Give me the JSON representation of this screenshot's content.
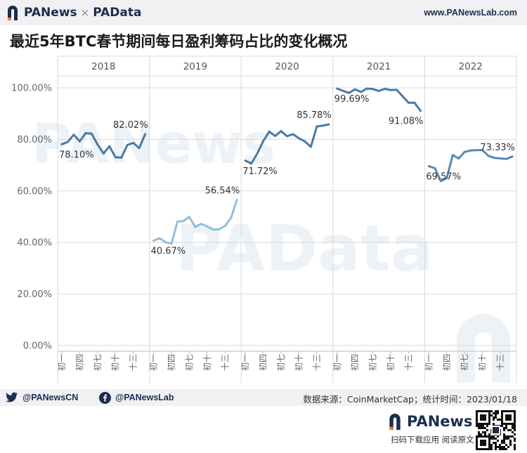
{
  "header": {
    "brand_left": "PANews",
    "separator": "×",
    "brand_right": "PAData",
    "url": "www.PANewsLab.com"
  },
  "colors": {
    "brand_blue": "#1c2d4f",
    "brand_orange": "#e8852b",
    "line_2018": "#4a7aa3",
    "line_2019": "#93bedd",
    "line_2020": "#4a7aa3",
    "line_2021": "#4a7aa3",
    "line_2022": "#5689b3",
    "grid": "#d9d9d9",
    "axis_text": "#666666"
  },
  "watermarks": [
    "PANews",
    "PAData"
  ],
  "chart_data": {
    "type": "line",
    "title": "最近5年BTC春节期间每日盈利筹码占比的变化概况",
    "ylim": [
      0,
      100
    ],
    "y_ticks": [
      "0.00%",
      "20.00%",
      "40.00%",
      "60.00%",
      "80.00%",
      "100.00%"
    ],
    "x_tick_labels": [
      "初一",
      "初四",
      "初七",
      "初十",
      "十三"
    ],
    "grid": "horizontal",
    "panels": [
      {
        "year": "2018",
        "values": [
          78.1,
          79.0,
          81.8,
          79.2,
          82.4,
          82.2,
          78.0,
          74.5,
          77.3,
          73.1,
          72.9,
          77.8,
          78.6,
          76.6,
          82.02
        ],
        "labels": [
          {
            "index": 0,
            "text": "78.10%",
            "pos": "below"
          },
          {
            "index": 14,
            "text": "82.02%",
            "pos": "above"
          }
        ]
      },
      {
        "year": "2019",
        "values": [
          40.67,
          41.6,
          40.1,
          39.5,
          48.1,
          48.3,
          49.9,
          46.0,
          47.2,
          46.2,
          45.0,
          45.1,
          46.4,
          49.5,
          56.54
        ],
        "labels": [
          {
            "index": 0,
            "text": "40.67%",
            "pos": "below"
          },
          {
            "index": 14,
            "text": "56.54%",
            "pos": "above"
          }
        ]
      },
      {
        "year": "2020",
        "values": [
          71.72,
          70.6,
          74.5,
          79.3,
          83.0,
          81.3,
          83.2,
          81.2,
          82.0,
          80.4,
          79.2,
          77.1,
          85.0,
          85.3,
          85.78
        ],
        "labels": [
          {
            "index": 0,
            "text": "71.72%",
            "pos": "below"
          },
          {
            "index": 14,
            "text": "85.78%",
            "pos": "above"
          }
        ]
      },
      {
        "year": "2021",
        "values": [
          99.69,
          98.8,
          98.0,
          99.4,
          98.4,
          99.7,
          99.5,
          98.8,
          99.6,
          99.1,
          99.2,
          96.7,
          94.2,
          94.2,
          91.08
        ],
        "labels": [
          {
            "index": 0,
            "text": "99.69%",
            "pos": "below"
          },
          {
            "index": 14,
            "text": "91.08%",
            "pos": "below"
          }
        ]
      },
      {
        "year": "2022",
        "values": [
          69.57,
          68.8,
          63.8,
          64.9,
          73.9,
          72.6,
          75.1,
          75.7,
          75.8,
          75.8,
          73.6,
          72.8,
          72.6,
          72.4,
          73.33
        ],
        "labels": [
          {
            "index": 0,
            "text": "69.57%",
            "pos": "below"
          },
          {
            "index": 14,
            "text": "73.33%",
            "pos": "above"
          }
        ]
      }
    ]
  },
  "footer": {
    "twitter": "@PANewsCN",
    "facebook": "@PANewsLab",
    "source": "数据来源：CoinMarketCap；统计时间：2023/01/18",
    "bottom_brand": "PANews",
    "bottom_caption": "扫码下载应用  阅读原文"
  }
}
